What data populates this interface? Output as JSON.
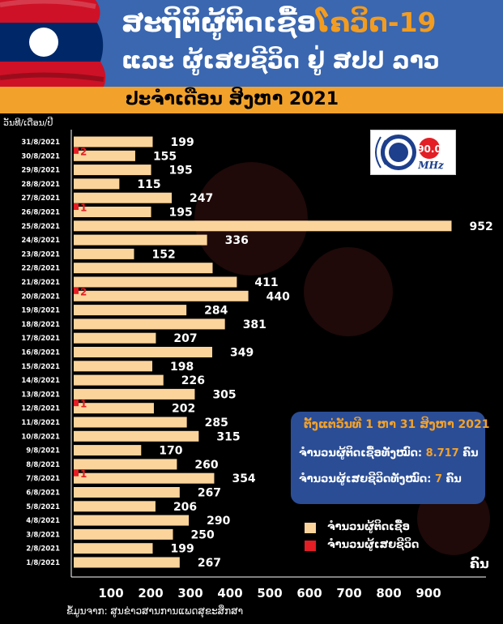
{
  "header": {
    "title_main": "ສະຖິຕິຜູ້ຕິດເຊື້ອ",
    "title_accent": "ໂຄວິດ-19",
    "subtitle": "ແລະ ຜູ້ເສຍຊີວິດ ຢູ່ ສປປ ລາວ",
    "period": "ປະຈຳເດືອນ ສິງຫາ 2021"
  },
  "logo": {
    "frequency": "90.0",
    "unit": "MHz"
  },
  "info_box": {
    "title": "ຕັ້ງແຕ່ວັນທີ 1 ຫາ 31 ສິງຫາ 2021",
    "total_cases_label": "ຈຳນວນຜູ້ຕິດເຊື້ອທັງໝົດ:",
    "total_cases_value": "8.717",
    "total_deaths_label": "ຈຳນວນຜູ້ເສຍຊີວິດທັງໝົດ:",
    "total_deaths_value": "7",
    "unit": "ຄົນ"
  },
  "legend": {
    "cases": "ຈຳນວນຜູ້ຕິດເຊື້ອ",
    "deaths": "ຈຳນວນຜູ້ເສຍຊີວິດ"
  },
  "unit_label": "ຄົນ",
  "source": "ຂໍ້ມູນຈາກ: ສູນຂ່າວສານການແພດສຸຂະສຶກສາ",
  "colors": {
    "cases": "#fbd49c",
    "deaths": "#e31e24",
    "header": "#3a67b0",
    "banner": "#f2a22b",
    "accent": "#f39c1f"
  },
  "chart_data": {
    "type": "bar",
    "orientation": "horizontal",
    "category_header": "ວັນທີ/ເດືອນ/ປີ",
    "categories": [
      "31/8/2021",
      "30/8/2021",
      "29/8/2021",
      "28/8/2021",
      "27/8/2021",
      "26/8/2021",
      "25/8/2021",
      "24/8/2021",
      "23/8/2021",
      "22/8/2021",
      "21/8/2021",
      "20/8/2021",
      "19/8/2021",
      "18/8/2021",
      "17/8/2021",
      "16/8/2021",
      "15/8/2021",
      "14/8/2021",
      "13/8/2021",
      "12/8/2021",
      "11/8/2021",
      "10/8/2021",
      "9/8/2021",
      "8/8/2021",
      "7/8/2021",
      "6/8/2021",
      "5/8/2021",
      "4/8/2021",
      "3/8/2021",
      "2/8/2021",
      "1/8/2021"
    ],
    "series": [
      {
        "name": "ຈຳນວນຜູ້ຕິດເຊື້ອ",
        "values": [
          199,
          155,
          195,
          115,
          247,
          195,
          952,
          336,
          152,
          null,
          411,
          440,
          284,
          381,
          207,
          349,
          198,
          226,
          305,
          202,
          285,
          315,
          170,
          260,
          354,
          267,
          206,
          290,
          250,
          199,
          267
        ]
      },
      {
        "name": "ຈຳນວນຜູ້ເສຍຊີວິດ",
        "values": [
          0,
          2,
          0,
          0,
          0,
          1,
          0,
          0,
          0,
          0,
          0,
          2,
          0,
          0,
          0,
          0,
          0,
          0,
          0,
          1,
          0,
          0,
          0,
          0,
          1,
          0,
          0,
          0,
          0,
          0,
          0
        ]
      }
    ],
    "cases_bar_22_8_estimate": 350,
    "xticks": [
      100,
      200,
      300,
      400,
      500,
      600,
      700,
      800,
      900
    ],
    "xlim": [
      0,
      950
    ]
  }
}
